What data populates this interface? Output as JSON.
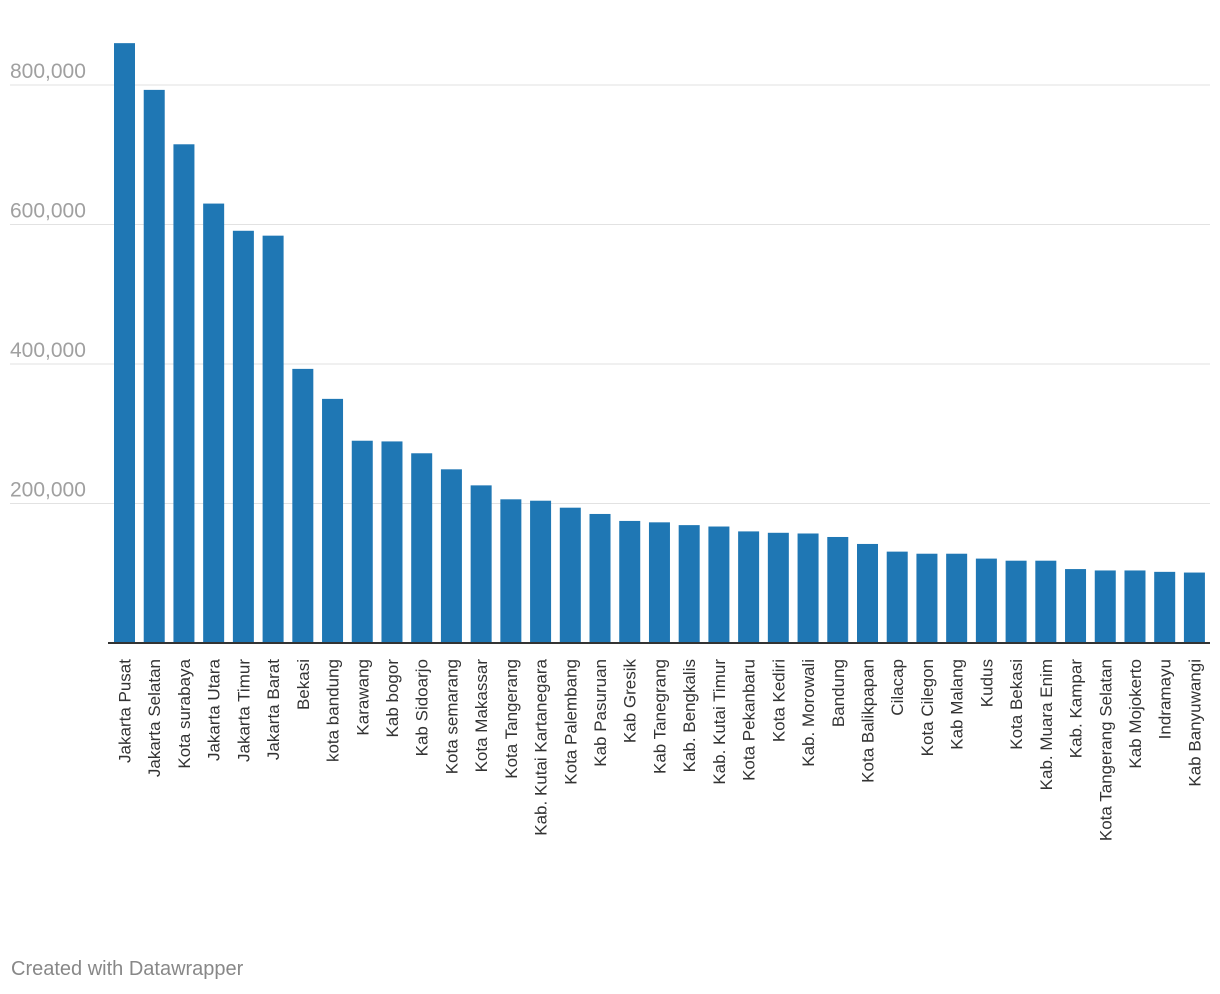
{
  "footer": {
    "credit": "Created with Datawrapper"
  },
  "chart_data": {
    "type": "bar",
    "title": "",
    "xlabel": "",
    "ylabel": "",
    "ylim": [
      0,
      860000
    ],
    "yticks": [
      200000,
      400000,
      600000,
      800000
    ],
    "ytick_labels": [
      "200,000",
      "400,000",
      "600,000",
      "800,000"
    ],
    "grid": true,
    "bar_color": "#1f77b4",
    "categories": [
      "Jakarta Pusat",
      "Jakarta Selatan",
      "Kota surabaya",
      "Jakarta Utara",
      "Jakarta Timur",
      "Jakarta Barat",
      "Bekasi",
      "kota bandung",
      "Karawang",
      "Kab bogor",
      "Kab Sidoarjo",
      "Kota semarang",
      "Kota Makassar",
      "Kota Tangerang",
      "Kab. Kutai Kartanegara",
      "Kota Palembang",
      "Kab Pasuruan",
      "Kab Gresik",
      "Kab Tanegrang",
      "Kab. Bengkalis",
      "Kab. Kutai Timur",
      "Kota Pekanbaru",
      "Kota Kediri",
      "Kab. Morowali",
      "Bandung",
      "Kota Balikpapan",
      "Cilacap",
      "Kota Cilegon",
      "Kab Malang",
      "Kudus",
      "Kota Bekasi",
      "Kab. Muara Enim",
      "Kab. Kampar",
      "Kota Tangerang Selatan",
      "Kab Mojokerto",
      "Indramayu",
      "Kab Banyuwangi"
    ],
    "values": [
      860000,
      793000,
      715000,
      630000,
      591000,
      584000,
      393000,
      350000,
      290000,
      289000,
      272000,
      249000,
      226000,
      206000,
      204000,
      194000,
      185000,
      175000,
      173000,
      169000,
      167000,
      160000,
      158000,
      157000,
      152000,
      142000,
      131000,
      128000,
      128000,
      121000,
      118000,
      118000,
      106000,
      104000,
      104000,
      102000,
      101000
    ]
  }
}
